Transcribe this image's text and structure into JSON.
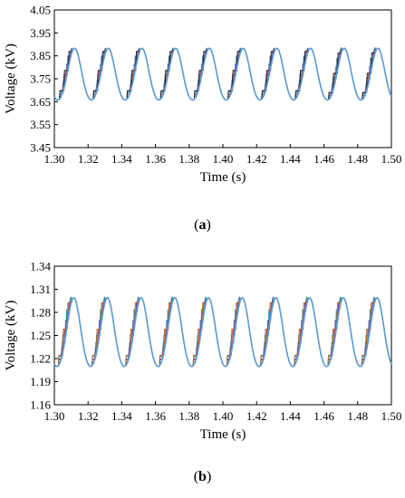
{
  "chart_data": [
    {
      "type": "line",
      "panel_label_open": "(",
      "panel_label": "a",
      "panel_label_close": ")",
      "xlabel": "Time (s)",
      "ylabel": "Voltage (kV)",
      "xlim": [
        1.3,
        1.5
      ],
      "ylim": [
        3.45,
        4.05
      ],
      "x_ticks": [
        "1.30",
        "1.32",
        "1.34",
        "1.36",
        "1.38",
        "1.40",
        "1.42",
        "1.44",
        "1.46",
        "1.48",
        "1.50"
      ],
      "y_ticks": [
        "3.45",
        "3.55",
        "3.65",
        "3.75",
        "3.85",
        "3.95",
        "4.05"
      ],
      "period": 0.02,
      "first_peak_time": 1.312,
      "peak_value": 3.883,
      "trough_value": 3.638,
      "grid": false,
      "series_colors": [
        "#4a7fb5",
        "#c0504d",
        "#7b5ea7",
        "#2e6b8a",
        "#1f1f1f",
        "#5b9bd5"
      ]
    },
    {
      "type": "line",
      "panel_label_open": "(",
      "panel_label": "b",
      "panel_label_close": ")",
      "xlabel": "Time (s)",
      "ylabel": "Voltage (kV)",
      "xlim": [
        1.3,
        1.5
      ],
      "ylim": [
        1.16,
        1.34
      ],
      "x_ticks": [
        "1.30",
        "1.32",
        "1.34",
        "1.36",
        "1.38",
        "1.40",
        "1.42",
        "1.44",
        "1.46",
        "1.48",
        "1.50"
      ],
      "y_ticks": [
        "1.16",
        "1.19",
        "1.22",
        "1.25",
        "1.28",
        "1.31",
        "1.34"
      ],
      "period": 0.02,
      "first_peak_time": 1.3115,
      "peak_value": 1.299,
      "trough_value": 1.202,
      "grid": false,
      "series_colors": [
        "#4a7fb5",
        "#c0504d",
        "#7b3fa0",
        "#2e8b9a",
        "#b5651d",
        "#5b9bd5"
      ]
    }
  ]
}
